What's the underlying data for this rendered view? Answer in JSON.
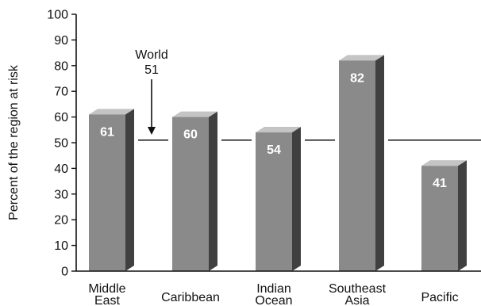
{
  "chart_data": {
    "type": "bar",
    "categories": [
      [
        "Middle",
        "East"
      ],
      [
        "Caribbean"
      ],
      [
        "Indian",
        "Ocean"
      ],
      [
        "Southeast",
        "Asia"
      ],
      [
        "Pacific"
      ]
    ],
    "values": [
      61,
      60,
      54,
      82,
      41
    ],
    "ylabel": "Percent of the region at risk",
    "ylim": [
      0,
      100
    ],
    "yticks": [
      0,
      10,
      20,
      30,
      40,
      50,
      60,
      70,
      80,
      90,
      100
    ],
    "reference_line": {
      "value": 51,
      "label": "World",
      "value_label": "51"
    },
    "colors": {
      "front": "#8a8a8a",
      "side": "#404040",
      "top": "#c4c4c4"
    }
  }
}
